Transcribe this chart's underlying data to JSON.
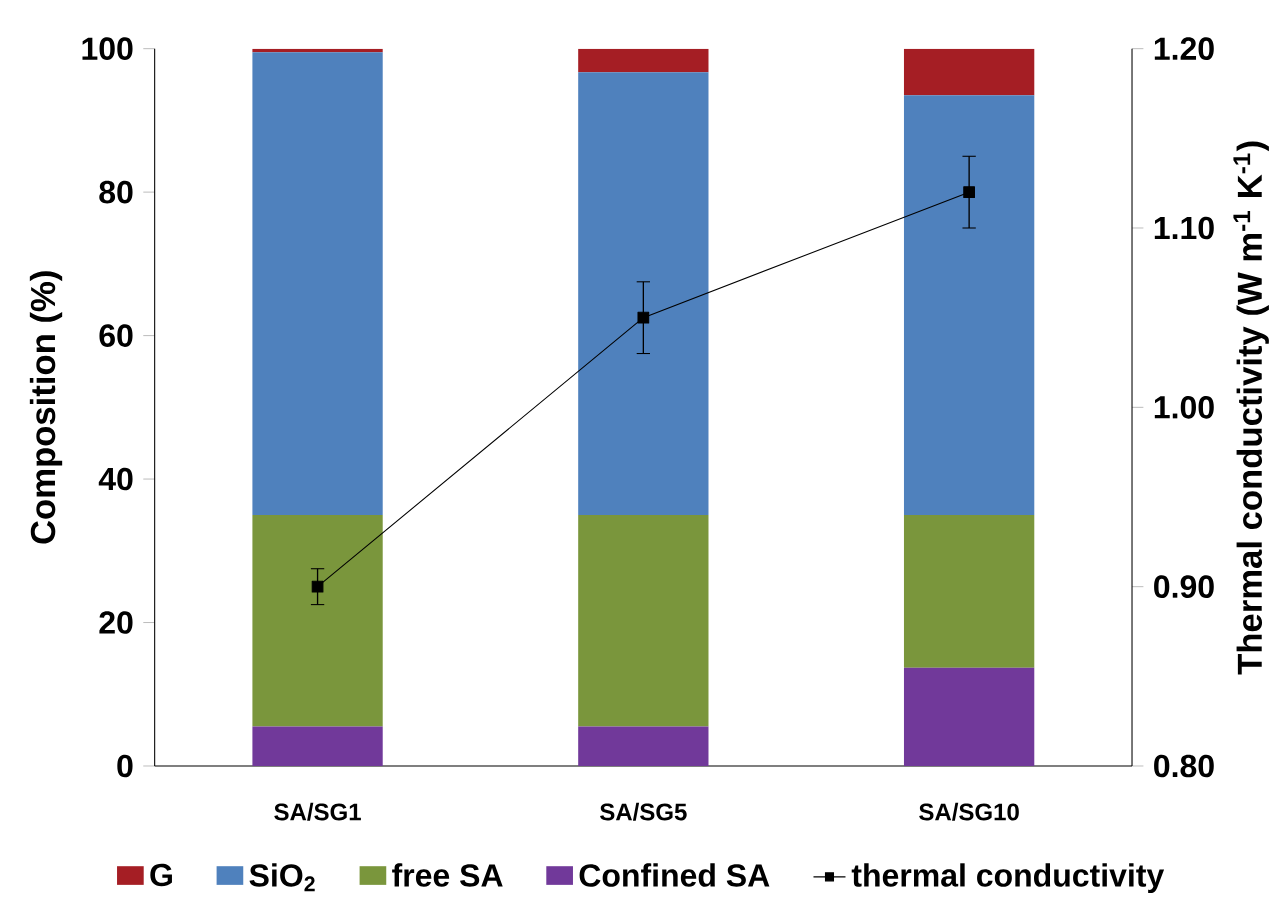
{
  "chart_data": {
    "type": "bar",
    "stacked": true,
    "ylabel": "Composition (%)",
    "y2label": "Thermal conductivity (W m$^{-1}$ K$^{-1}$)",
    "categories": [
      "SA/SG1",
      "SA/SG5",
      "SA/SG10"
    ],
    "ylim": [
      0,
      100
    ],
    "yticks": [
      0,
      20,
      40,
      60,
      80,
      100
    ],
    "y2lim": [
      0.8,
      1.2
    ],
    "y2ticks": [
      {
        "value": 0.8,
        "label": "0.80"
      },
      {
        "value": 0.9,
        "label": "0.90"
      },
      {
        "value": 1.0,
        "label": "1.00"
      },
      {
        "value": 1.1,
        "label": "1.10"
      },
      {
        "value": 1.2,
        "label": "1.20"
      }
    ],
    "grid": false,
    "legend": "bottom",
    "series": [
      {
        "name": "Confined SA",
        "color": "#71399a",
        "values": [
          5.5,
          5.5,
          13.7
        ]
      },
      {
        "name": "free SA",
        "color": "#7a963c",
        "values": [
          29.5,
          29.5,
          21.3
        ]
      },
      {
        "name": "SiO$_{2}$",
        "color": "#4f81bd",
        "values": [
          64.5,
          61.7,
          58.5
        ]
      },
      {
        "name": "G",
        "color": "#a51e24",
        "values": [
          0.5,
          3.3,
          6.5
        ]
      },
      {
        "name": "thermal conductivity",
        "type": "line",
        "axis": "y2",
        "color": "#000000",
        "marker": "square",
        "line_style": "solid",
        "values": [
          0.9,
          1.05,
          1.12
        ],
        "errors": [
          0.01,
          0.02,
          0.02
        ]
      }
    ]
  }
}
